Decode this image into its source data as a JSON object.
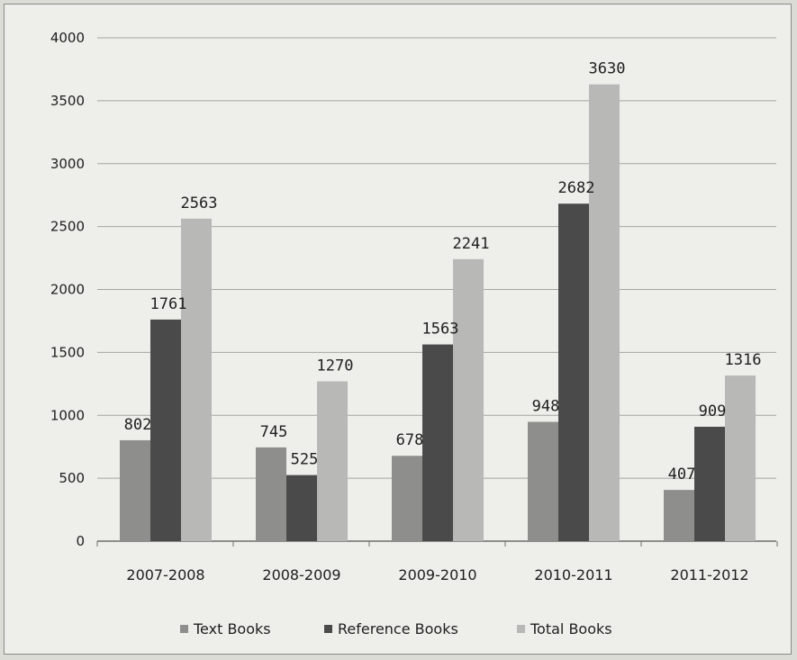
{
  "chart_data": {
    "type": "bar",
    "title": "",
    "xlabel": "",
    "ylabel": "",
    "categories": [
      "2007-2008",
      "2008-2009",
      "2009-2010",
      "2010-2011",
      "2011-2012"
    ],
    "series": [
      {
        "name": "Text Books",
        "values": [
          802,
          745,
          678,
          948,
          407
        ],
        "color": "#8e8e8c"
      },
      {
        "name": "Reference Books",
        "values": [
          1761,
          525,
          1563,
          2682,
          909
        ],
        "color": "#4a4a4a"
      },
      {
        "name": "Total Books",
        "values": [
          2563,
          1270,
          2241,
          3630,
          1316
        ],
        "color": "#b8b8b6"
      }
    ],
    "ylim": [
      0,
      4000
    ],
    "yticks": [
      0,
      500,
      1000,
      1500,
      2000,
      2500,
      3000,
      3500,
      4000
    ],
    "grid": true,
    "legend_position": "bottom"
  }
}
